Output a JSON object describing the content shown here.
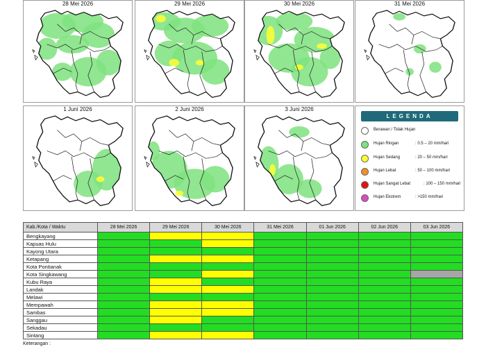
{
  "maps": [
    {
      "date": "28 Mei 2026",
      "intensity": "light-heavy"
    },
    {
      "date": "29 Mei 2026",
      "intensity": "moderate"
    },
    {
      "date": "30 Mei 2026",
      "intensity": "moderate"
    },
    {
      "date": "31 Mei 2026",
      "intensity": "light-sparse"
    },
    {
      "date": "1 Juni 2026",
      "intensity": "light-southeast"
    },
    {
      "date": "2 Juni 2026",
      "intensity": "light-south"
    },
    {
      "date": "3 Juni 2026",
      "intensity": "light-southwest"
    }
  ],
  "legend": {
    "title": "LEGENDA",
    "items": [
      {
        "label": "Berawan / Tidak Hujan",
        "range": "",
        "color": "#ffffff"
      },
      {
        "label": "Hujan Ringan",
        "range": ": 0.5 – 20 mm/hari",
        "color": "#7ee27e"
      },
      {
        "label": "Hujan Sedang",
        "range": ": 20 – 50 mm/hari",
        "color": "#ffff33"
      },
      {
        "label": "Hujan Lebat",
        "range": ": 50 – 100 mm/hari",
        "color": "#f0902a"
      },
      {
        "label": "Hujan Sangat Lebat",
        "range": ": 100 – 150 mm/hari",
        "color": "#e81010"
      },
      {
        "label": "Hujan Ekstrem",
        "range": ": >150 mm/hari",
        "color": "#d84cc0"
      }
    ]
  },
  "table": {
    "header_first": "Kab./Kota / Waktu",
    "dates": [
      "28 Mei 2026",
      "29 Mei 2026",
      "30 Mei 2026",
      "31 Mei 2026",
      "01 Jun 2026",
      "02 Jun 2026",
      "03 Jun 2026"
    ],
    "rows": [
      {
        "name": "Bengkayang",
        "cells": [
          "green",
          "yellow",
          "yellow",
          "green",
          "green",
          "green",
          "green"
        ]
      },
      {
        "name": "Kapuas Hulu",
        "cells": [
          "green",
          "green",
          "yellow",
          "green",
          "green",
          "green",
          "green"
        ]
      },
      {
        "name": "Kayong Utara",
        "cells": [
          "green",
          "green",
          "green",
          "green",
          "green",
          "green",
          "green"
        ]
      },
      {
        "name": "Ketapang",
        "cells": [
          "green",
          "yellow",
          "yellow",
          "green",
          "green",
          "green",
          "green"
        ]
      },
      {
        "name": "Kota Pontianak",
        "cells": [
          "green",
          "green",
          "green",
          "green",
          "green",
          "green",
          "green"
        ]
      },
      {
        "name": "Kota Singkawang",
        "cells": [
          "green",
          "green",
          "yellow",
          "green",
          "green",
          "green",
          "gray"
        ]
      },
      {
        "name": "Kubu Raya",
        "cells": [
          "green",
          "yellow",
          "green",
          "green",
          "green",
          "green",
          "green"
        ]
      },
      {
        "name": "Landak",
        "cells": [
          "green",
          "yellow",
          "yellow",
          "green",
          "green",
          "green",
          "green"
        ]
      },
      {
        "name": "Melawi",
        "cells": [
          "green",
          "green",
          "green",
          "green",
          "green",
          "green",
          "green"
        ]
      },
      {
        "name": "Mempawah",
        "cells": [
          "green",
          "yellow",
          "yellow",
          "green",
          "green",
          "green",
          "green"
        ]
      },
      {
        "name": "Sambas",
        "cells": [
          "green",
          "yellow",
          "yellow",
          "green",
          "green",
          "green",
          "green"
        ]
      },
      {
        "name": "Sanggau",
        "cells": [
          "green",
          "yellow",
          "green",
          "green",
          "green",
          "green",
          "green"
        ]
      },
      {
        "name": "Sekadau",
        "cells": [
          "green",
          "green",
          "green",
          "green",
          "green",
          "green",
          "green"
        ]
      },
      {
        "name": "Sintang",
        "cells": [
          "green",
          "yellow",
          "yellow",
          "green",
          "green",
          "green",
          "green"
        ]
      }
    ]
  },
  "note": "Keterangan :"
}
